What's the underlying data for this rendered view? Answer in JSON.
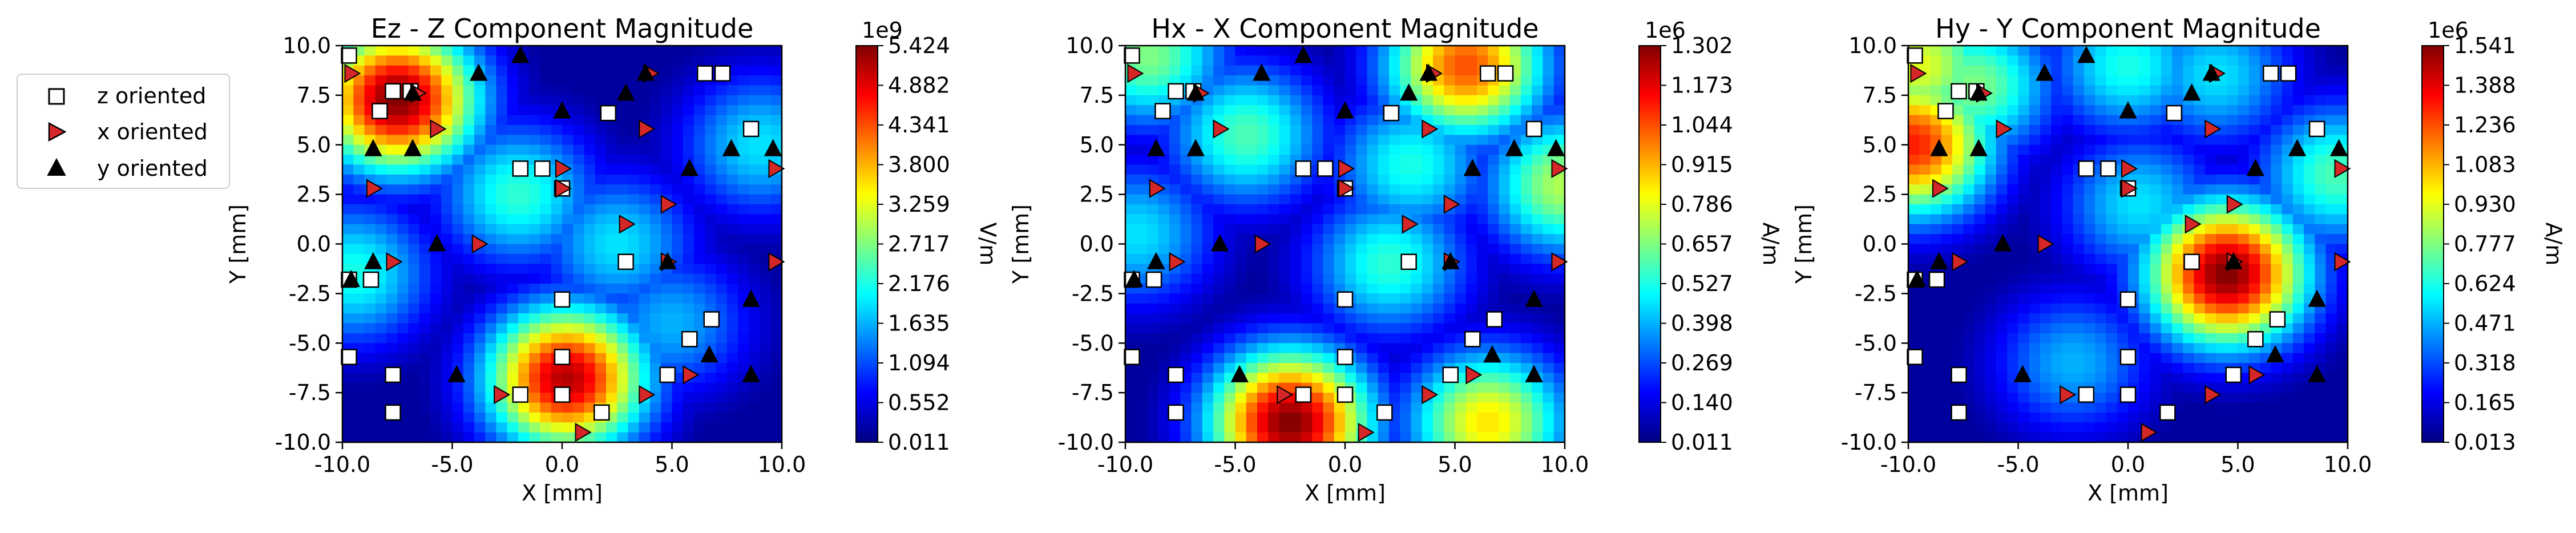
{
  "legend": {
    "placement": "left-outside",
    "entries": [
      {
        "label": "z oriented",
        "marker": "square",
        "fill": "#ffffff"
      },
      {
        "label": "x oriented",
        "marker": "triangle-right",
        "fill": "#d62728"
      },
      {
        "label": "y oriented",
        "marker": "triangle-up",
        "fill": "#000000"
      }
    ]
  },
  "colormap": "jet",
  "chart_data": [
    {
      "type": "heatmap",
      "title": "Ez - Z Component Magnitude",
      "xlabel": "X [mm]",
      "ylabel": "Y [mm]",
      "xlim": [
        -10,
        10
      ],
      "ylim": [
        -10,
        10
      ],
      "xticks": [
        "-10.0",
        "-5.0",
        "0.0",
        "5.0",
        "10.0"
      ],
      "yticks": [
        "10.0",
        "7.5",
        "5.0",
        "2.5",
        "0.0",
        "-2.5",
        "-5.0",
        "-7.5",
        "-10.0"
      ],
      "colorbar": {
        "label": "V/m",
        "exponent": "1e9",
        "ticks": [
          "5.424",
          "4.882",
          "4.341",
          "3.800",
          "3.259",
          "2.717",
          "2.176",
          "1.635",
          "1.094",
          "0.552",
          "0.011"
        ],
        "range": [
          0.011,
          5.424
        ]
      },
      "field_peaks": [
        {
          "x": -7.5,
          "y": 7.3,
          "level": 1.0
        },
        {
          "x": 0.2,
          "y": -6.8,
          "level": 0.95
        },
        {
          "x": -2.0,
          "y": 2.5,
          "level": 0.42
        },
        {
          "x": 9.0,
          "y": 5.0,
          "level": 0.35
        },
        {
          "x": -9.5,
          "y": -1.5,
          "level": 0.4
        },
        {
          "x": 2.5,
          "y": 0.0,
          "level": 0.35
        },
        {
          "x": 5.0,
          "y": -4.0,
          "level": 0.3
        }
      ]
    },
    {
      "type": "heatmap",
      "title": "Hx - X Component Magnitude",
      "xlabel": "X [mm]",
      "ylabel": "Y [mm]",
      "xlim": [
        -10,
        10
      ],
      "ylim": [
        -10,
        10
      ],
      "xticks": [
        "-10.0",
        "-5.0",
        "0.0",
        "5.0",
        "10.0"
      ],
      "yticks": [
        "10.0",
        "7.5",
        "5.0",
        "2.5",
        "0.0",
        "-2.5",
        "-5.0",
        "-7.5",
        "-10.0"
      ],
      "colorbar": {
        "label": "A/m",
        "exponent": "1e6",
        "ticks": [
          "1.302",
          "1.173",
          "1.044",
          "0.915",
          "0.786",
          "0.657",
          "0.527",
          "0.398",
          "0.269",
          "0.140",
          "0.011"
        ],
        "range": [
          0.011,
          1.302
        ]
      },
      "field_peaks": [
        {
          "x": -2.5,
          "y": -9.0,
          "level": 1.0
        },
        {
          "x": 5.5,
          "y": 9.0,
          "level": 0.8
        },
        {
          "x": 6.5,
          "y": -9.0,
          "level": 0.65
        },
        {
          "x": 10.0,
          "y": 3.0,
          "level": 0.55
        },
        {
          "x": -9.0,
          "y": 9.5,
          "level": 0.5
        },
        {
          "x": -4.5,
          "y": 5.5,
          "level": 0.45
        },
        {
          "x": 2.0,
          "y": -1.0,
          "level": 0.42
        },
        {
          "x": 3.0,
          "y": 4.0,
          "level": 0.4
        },
        {
          "x": -9.5,
          "y": 0.5,
          "level": 0.35
        }
      ]
    },
    {
      "type": "heatmap",
      "title": "Hy - Y Component Magnitude",
      "xlabel": "X [mm]",
      "ylabel": "Y [mm]",
      "xlim": [
        -10,
        10
      ],
      "ylim": [
        -10,
        10
      ],
      "xticks": [
        "-10.0",
        "-5.0",
        "0.0",
        "5.0",
        "10.0"
      ],
      "yticks": [
        "10.0",
        "7.5",
        "5.0",
        "2.5",
        "0.0",
        "-2.5",
        "-5.0",
        "-7.5",
        "-10.0"
      ],
      "colorbar": {
        "label": "A/m",
        "exponent": "1e6",
        "ticks": [
          "1.541",
          "1.388",
          "1.236",
          "1.083",
          "0.930",
          "0.777",
          "0.624",
          "0.471",
          "0.318",
          "0.165",
          "0.013"
        ],
        "range": [
          0.013,
          1.541
        ]
      },
      "field_peaks": [
        {
          "x": 4.5,
          "y": -1.5,
          "level": 1.0
        },
        {
          "x": -9.8,
          "y": 5.0,
          "level": 0.85
        },
        {
          "x": -9.5,
          "y": 9.0,
          "level": 0.6
        },
        {
          "x": -7.0,
          "y": 8.0,
          "level": 0.5
        },
        {
          "x": 9.5,
          "y": 3.5,
          "level": 0.45
        },
        {
          "x": 0.0,
          "y": 9.0,
          "level": 0.4
        },
        {
          "x": 0.5,
          "y": 2.0,
          "level": 0.35
        },
        {
          "x": 4.0,
          "y": 8.5,
          "level": 0.35
        },
        {
          "x": -2.5,
          "y": -6.0,
          "level": 0.3
        }
      ]
    }
  ],
  "markers": {
    "z_oriented": [
      [
        -9.7,
        9.5
      ],
      [
        -7.7,
        7.7
      ],
      [
        -6.9,
        7.7
      ],
      [
        -8.3,
        6.7
      ],
      [
        -1.9,
        3.8
      ],
      [
        -0.9,
        3.8
      ],
      [
        0.0,
        2.8
      ],
      [
        2.1,
        6.6
      ],
      [
        6.5,
        8.6
      ],
      [
        7.3,
        8.6
      ],
      [
        8.6,
        5.8
      ],
      [
        -9.7,
        -1.8
      ],
      [
        -8.7,
        -1.8
      ],
      [
        2.9,
        -0.9
      ],
      [
        0.0,
        -2.8
      ],
      [
        6.8,
        -3.8
      ],
      [
        5.8,
        -4.8
      ],
      [
        -9.7,
        -5.7
      ],
      [
        0.0,
        -5.7
      ],
      [
        -7.7,
        -6.6
      ],
      [
        4.8,
        -6.6
      ],
      [
        -1.9,
        -7.6
      ],
      [
        0.0,
        -7.6
      ],
      [
        1.8,
        -8.5
      ],
      [
        -7.7,
        -8.5
      ]
    ],
    "x_oriented": [
      [
        -9.6,
        8.6
      ],
      [
        -6.6,
        7.6
      ],
      [
        4.0,
        8.6
      ],
      [
        -5.7,
        5.8
      ],
      [
        3.8,
        5.8
      ],
      [
        0.0,
        3.8
      ],
      [
        -8.6,
        2.8
      ],
      [
        0.0,
        2.8
      ],
      [
        9.7,
        3.8
      ],
      [
        4.8,
        2.0
      ],
      [
        2.9,
        1.0
      ],
      [
        -3.8,
        0.0
      ],
      [
        -7.7,
        -0.9
      ],
      [
        4.8,
        -0.9
      ],
      [
        9.7,
        -0.9
      ],
      [
        -2.8,
        -7.6
      ],
      [
        3.8,
        -7.6
      ],
      [
        5.8,
        -6.6
      ],
      [
        0.9,
        -9.5
      ]
    ],
    "y_oriented": [
      [
        -6.8,
        7.6
      ],
      [
        -3.8,
        8.6
      ],
      [
        -1.9,
        9.5
      ],
      [
        0.0,
        6.7
      ],
      [
        2.9,
        7.6
      ],
      [
        3.8,
        8.6
      ],
      [
        -8.6,
        4.8
      ],
      [
        -6.8,
        4.8
      ],
      [
        5.8,
        3.8
      ],
      [
        7.7,
        4.8
      ],
      [
        9.6,
        4.8
      ],
      [
        -5.7,
        0.0
      ],
      [
        -8.6,
        -0.9
      ],
      [
        4.8,
        -0.9
      ],
      [
        -9.6,
        -1.8
      ],
      [
        8.6,
        -2.8
      ],
      [
        6.7,
        -5.6
      ],
      [
        -4.8,
        -6.6
      ],
      [
        8.6,
        -6.6
      ]
    ]
  }
}
